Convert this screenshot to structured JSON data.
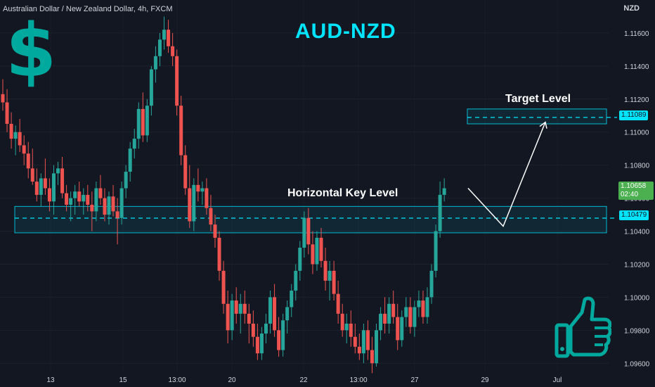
{
  "header": {
    "symbol_description": "Australian Dollar / New Zealand Dollar, 4h, FXCM",
    "currency": "NZD"
  },
  "title": "AUD-NZD",
  "icons": {
    "left": "dollar-sign-icon",
    "bottom_right": "thumbs-up-icon"
  },
  "colors": {
    "background": "#131722",
    "bull": "#26a69a",
    "bear": "#ef5350",
    "accent": "#00e5ff",
    "zone": "#00bcd4",
    "dollar": "#00a99d",
    "bull_badge": "#4caf50"
  },
  "annotations": {
    "key_level_label": "Horizontal Key Level",
    "target_level_label": "Target Level",
    "key_level_price": "1.10479",
    "target_level_price": "1.11089",
    "current_price": "1.10658",
    "countdown": "02:40"
  },
  "chart_data": {
    "type": "candlestick",
    "symbol": "AUDNZD",
    "timeframe": "4h",
    "ylim": [
      1.0955,
      1.118
    ],
    "y_ticks": [
      "1.11600",
      "1.11400",
      "1.11200",
      "1.11000",
      "1.10800",
      "1.10600",
      "1.10400",
      "1.10200",
      "1.10000",
      "1.09800",
      "1.09600"
    ],
    "x_ticks": [
      "13",
      "15",
      "13:00",
      "20",
      "22",
      "13:00",
      "27",
      "29",
      "Jul"
    ],
    "key_level_zone": {
      "low": 1.1039,
      "high": 1.1055,
      "line": 1.10479
    },
    "target_zone": {
      "low": 1.1105,
      "high": 1.1114,
      "line": 1.11089
    },
    "projection": [
      1.1066,
      1.1043,
      1.1106
    ],
    "candles": [
      [
        1.1123,
        1.1132,
        1.1113,
        1.1118
      ],
      [
        1.1118,
        1.1126,
        1.11,
        1.1105
      ],
      [
        1.1105,
        1.1112,
        1.109,
        1.1096
      ],
      [
        1.1096,
        1.1104,
        1.1086,
        1.11
      ],
      [
        1.11,
        1.1108,
        1.1088,
        1.1092
      ],
      [
        1.1092,
        1.1098,
        1.108,
        1.1087
      ],
      [
        1.1087,
        1.1094,
        1.1072,
        1.1078
      ],
      [
        1.1078,
        1.109,
        1.1068,
        1.107
      ],
      [
        1.107,
        1.1078,
        1.1058,
        1.1062
      ],
      [
        1.1062,
        1.1075,
        1.1055,
        1.1072
      ],
      [
        1.1072,
        1.1084,
        1.1062,
        1.1066
      ],
      [
        1.1066,
        1.1072,
        1.1052,
        1.1058
      ],
      [
        1.1058,
        1.108,
        1.105,
        1.1075
      ],
      [
        1.1075,
        1.1082,
        1.1068,
        1.1078
      ],
      [
        1.1078,
        1.1085,
        1.106,
        1.1063
      ],
      [
        1.1063,
        1.1068,
        1.1052,
        1.1056
      ],
      [
        1.1056,
        1.1064,
        1.1046,
        1.106
      ],
      [
        1.106,
        1.1068,
        1.105,
        1.1064
      ],
      [
        1.1064,
        1.107,
        1.1055,
        1.1058
      ],
      [
        1.1058,
        1.1066,
        1.105,
        1.1062
      ],
      [
        1.1062,
        1.1068,
        1.1052,
        1.1056
      ],
      [
        1.1056,
        1.1064,
        1.104,
        1.1052
      ],
      [
        1.1052,
        1.107,
        1.1046,
        1.1066
      ],
      [
        1.1066,
        1.1074,
        1.1056,
        1.106
      ],
      [
        1.106,
        1.1066,
        1.1046,
        1.105
      ],
      [
        1.105,
        1.1064,
        1.1044,
        1.1061
      ],
      [
        1.1061,
        1.1068,
        1.1049,
        1.1052
      ],
      [
        1.1052,
        1.106,
        1.1032,
        1.1048
      ],
      [
        1.1048,
        1.107,
        1.1044,
        1.1066
      ],
      [
        1.1066,
        1.108,
        1.106,
        1.1076
      ],
      [
        1.1076,
        1.1094,
        1.107,
        1.109
      ],
      [
        1.109,
        1.1102,
        1.1084,
        1.1096
      ],
      [
        1.1096,
        1.1118,
        1.109,
        1.1114
      ],
      [
        1.1114,
        1.1124,
        1.1094,
        1.1098
      ],
      [
        1.1098,
        1.112,
        1.1094,
        1.1116
      ],
      [
        1.1116,
        1.114,
        1.111,
        1.1138
      ],
      [
        1.1138,
        1.1152,
        1.113,
        1.1146
      ],
      [
        1.1146,
        1.116,
        1.114,
        1.1156
      ],
      [
        1.1156,
        1.117,
        1.115,
        1.1162
      ],
      [
        1.1162,
        1.1168,
        1.1148,
        1.1152
      ],
      [
        1.1152,
        1.116,
        1.114,
        1.1146
      ],
      [
        1.1146,
        1.115,
        1.111,
        1.1116
      ],
      [
        1.1116,
        1.1122,
        1.108,
        1.1086
      ],
      [
        1.1086,
        1.1092,
        1.1062,
        1.1066
      ],
      [
        1.1066,
        1.108,
        1.1042,
        1.1046
      ],
      [
        1.1046,
        1.1072,
        1.104,
        1.1068
      ],
      [
        1.1068,
        1.1078,
        1.1058,
        1.1064
      ],
      [
        1.1064,
        1.107,
        1.1056,
        1.1066
      ],
      [
        1.1066,
        1.1072,
        1.105,
        1.1054
      ],
      [
        1.1054,
        1.1062,
        1.104,
        1.1044
      ],
      [
        1.1044,
        1.105,
        1.103,
        1.1036
      ],
      [
        1.1036,
        1.104,
        1.101,
        1.1016
      ],
      [
        1.1016,
        1.1022,
        1.099,
        1.0996
      ],
      [
        1.0996,
        1.1004,
        1.0972,
        1.098
      ],
      [
        1.098,
        1.1002,
        1.0974,
        1.0998
      ],
      [
        1.0998,
        1.1006,
        1.0984,
        1.099
      ],
      [
        1.099,
        1.1002,
        1.0978,
        1.0996
      ],
      [
        1.0996,
        1.1004,
        1.0984,
        1.099
      ],
      [
        1.099,
        1.0996,
        1.0972,
        1.0984
      ],
      [
        1.0984,
        1.0992,
        1.097,
        1.0976
      ],
      [
        1.0976,
        1.0984,
        1.0962,
        1.0966
      ],
      [
        1.0966,
        1.0982,
        1.0962,
        1.0978
      ],
      [
        1.0978,
        1.099,
        1.0972,
        1.0984
      ],
      [
        1.0984,
        1.1004,
        1.0978,
        1.1
      ],
      [
        1.1,
        1.1008,
        1.0976,
        1.098
      ],
      [
        1.098,
        1.0988,
        1.0964,
        1.0968
      ],
      [
        1.0968,
        1.099,
        1.0964,
        1.0986
      ],
      [
        1.0986,
        1.0998,
        1.0978,
        1.0994
      ],
      [
        1.0994,
        1.1008,
        1.0988,
        1.1004
      ],
      [
        1.1004,
        1.102,
        1.0998,
        1.1016
      ],
      [
        1.1016,
        1.1034,
        1.101,
        1.103
      ],
      [
        1.103,
        1.1052,
        1.1024,
        1.1048
      ],
      [
        1.1048,
        1.1054,
        1.1026,
        1.1032
      ],
      [
        1.1032,
        1.104,
        1.1014,
        1.102
      ],
      [
        1.102,
        1.104,
        1.1016,
        1.1036
      ],
      [
        1.1036,
        1.1042,
        1.1018,
        1.1022
      ],
      [
        1.1022,
        1.103,
        1.1004,
        1.101
      ],
      [
        1.101,
        1.1022,
        1.0998,
        1.1016
      ],
      [
        1.1016,
        1.1022,
        1.0998,
        1.1002
      ],
      [
        1.1002,
        1.101,
        1.0984,
        1.099
      ],
      [
        1.099,
        1.0996,
        1.0976,
        1.098
      ],
      [
        1.098,
        1.099,
        1.0972,
        1.0984
      ],
      [
        1.0984,
        1.0992,
        1.097,
        1.0976
      ],
      [
        1.0976,
        1.0984,
        1.0966,
        1.097
      ],
      [
        1.097,
        1.0978,
        1.0962,
        1.0966
      ],
      [
        1.0966,
        1.0984,
        1.096,
        1.098
      ],
      [
        1.098,
        1.0986,
        1.0962,
        1.0968
      ],
      [
        1.0968,
        1.0976,
        1.0954,
        1.096
      ],
      [
        1.096,
        1.0984,
        1.0958,
        1.098
      ],
      [
        1.098,
        1.0994,
        1.0974,
        1.099
      ],
      [
        1.099,
        1.1,
        1.0978,
        1.0984
      ],
      [
        1.0984,
        1.1,
        1.0978,
        1.0996
      ],
      [
        1.0996,
        1.1004,
        1.0984,
        1.0988
      ],
      [
        1.0988,
        1.0996,
        1.0968,
        1.0974
      ],
      [
        1.0974,
        1.0992,
        1.097,
        1.0988
      ],
      [
        1.0988,
        1.1,
        1.0982,
        1.0994
      ],
      [
        1.0994,
        1.1,
        1.0978,
        1.0982
      ],
      [
        1.0982,
        1.0998,
        1.0976,
        1.0994
      ],
      [
        1.0994,
        1.1004,
        1.0988,
        1.0998
      ],
      [
        1.0998,
        1.1004,
        1.0984,
        1.0988
      ],
      [
        1.0988,
        1.1006,
        1.0984,
        1.1
      ],
      [
        1.1,
        1.102,
        1.0996,
        1.1016
      ],
      [
        1.1016,
        1.1044,
        1.1012,
        1.104
      ],
      [
        1.104,
        1.107,
        1.1036,
        1.1062
      ],
      [
        1.1062,
        1.1072,
        1.1058,
        1.1066
      ]
    ]
  }
}
